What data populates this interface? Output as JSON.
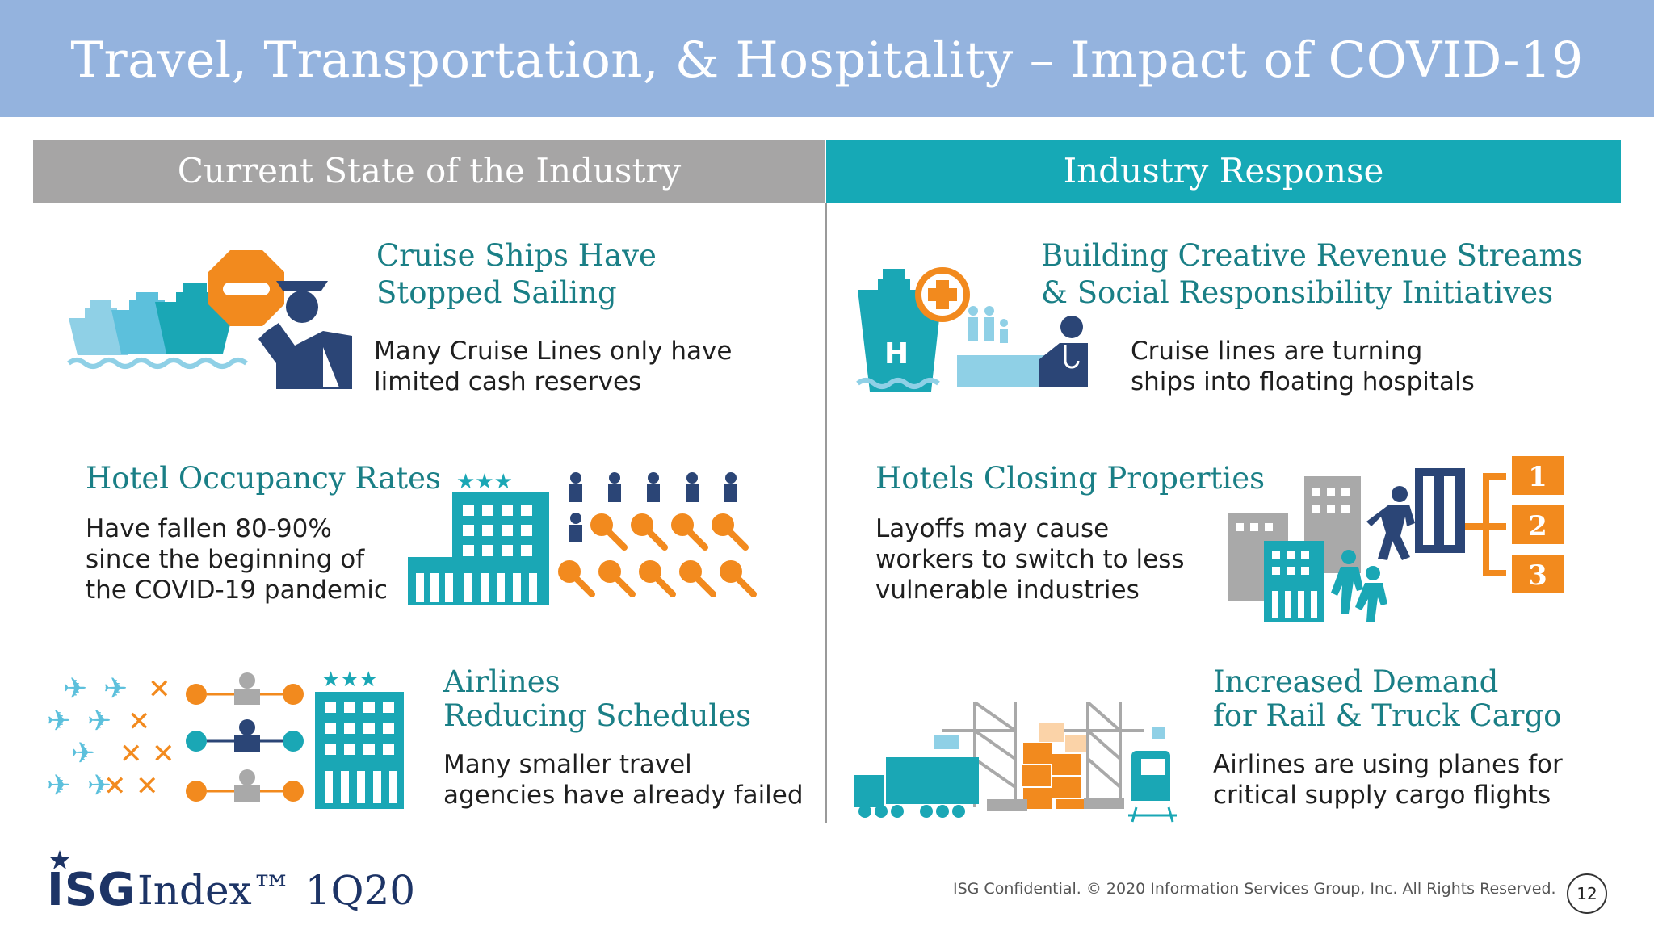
{
  "slide": {
    "title": "Travel, Transportation, & Hospitality – Impact of COVID-19"
  },
  "columns": {
    "left_header": "Current State of the Industry",
    "right_header": "Industry Response"
  },
  "left": {
    "cruise": {
      "title_l1": "Cruise Ships Have",
      "title_l2": "Stopped Sailing",
      "body_l1": "Many Cruise Lines only have",
      "body_l2": "limited cash reserves"
    },
    "hotel": {
      "title": "Hotel Occupancy Rates",
      "body_l1": "Have fallen 80-90%",
      "body_l2": "since the beginning of",
      "body_l3": "the COVID-19 pandemic"
    },
    "airlines": {
      "title_l1": "Airlines",
      "title_l2": "Reducing Schedules",
      "body_l1": "Many smaller travel",
      "body_l2": "agencies have already failed"
    }
  },
  "right": {
    "revenue": {
      "title_l1": "Building Creative Revenue Streams",
      "title_l2": "& Social Responsibility Initiatives",
      "body_l1": "Cruise lines are turning",
      "body_l2": "ships into floating hospitals"
    },
    "closing": {
      "title": "Hotels Closing Properties",
      "body_l1": "Layoffs may cause",
      "body_l2": "workers to switch to less",
      "body_l3": "vulnerable industries",
      "steps": [
        "1",
        "2",
        "3"
      ]
    },
    "cargo": {
      "title_l1": "Increased Demand",
      "title_l2": "for Rail & Truck Cargo",
      "body_l1": "Airlines are using planes for",
      "body_l2": "critical supply cargo flights"
    }
  },
  "icons": {
    "cruise_art": "cruise-ships-stop-icon",
    "hotel_art": "hotel-keys-icon",
    "airlines_art": "airplanes-agents-icon",
    "hospital_art": "hospital-ship-icon",
    "closing_art": "hotel-closing-icon",
    "cargo_art": "rail-truck-cargo-icon"
  },
  "colors": {
    "title_bar": "#94b3de",
    "teal": "#16a9b6",
    "navy": "#2b4576",
    "orange": "#f28a1e",
    "gray_header": "#a6a5a5"
  },
  "footer": {
    "logo_brand": "ISG",
    "logo_product": "Index™ 1Q20",
    "copyright": "ISG Confidential. © 2020 Information Services Group, Inc.  All Rights Reserved.",
    "page": "12"
  }
}
